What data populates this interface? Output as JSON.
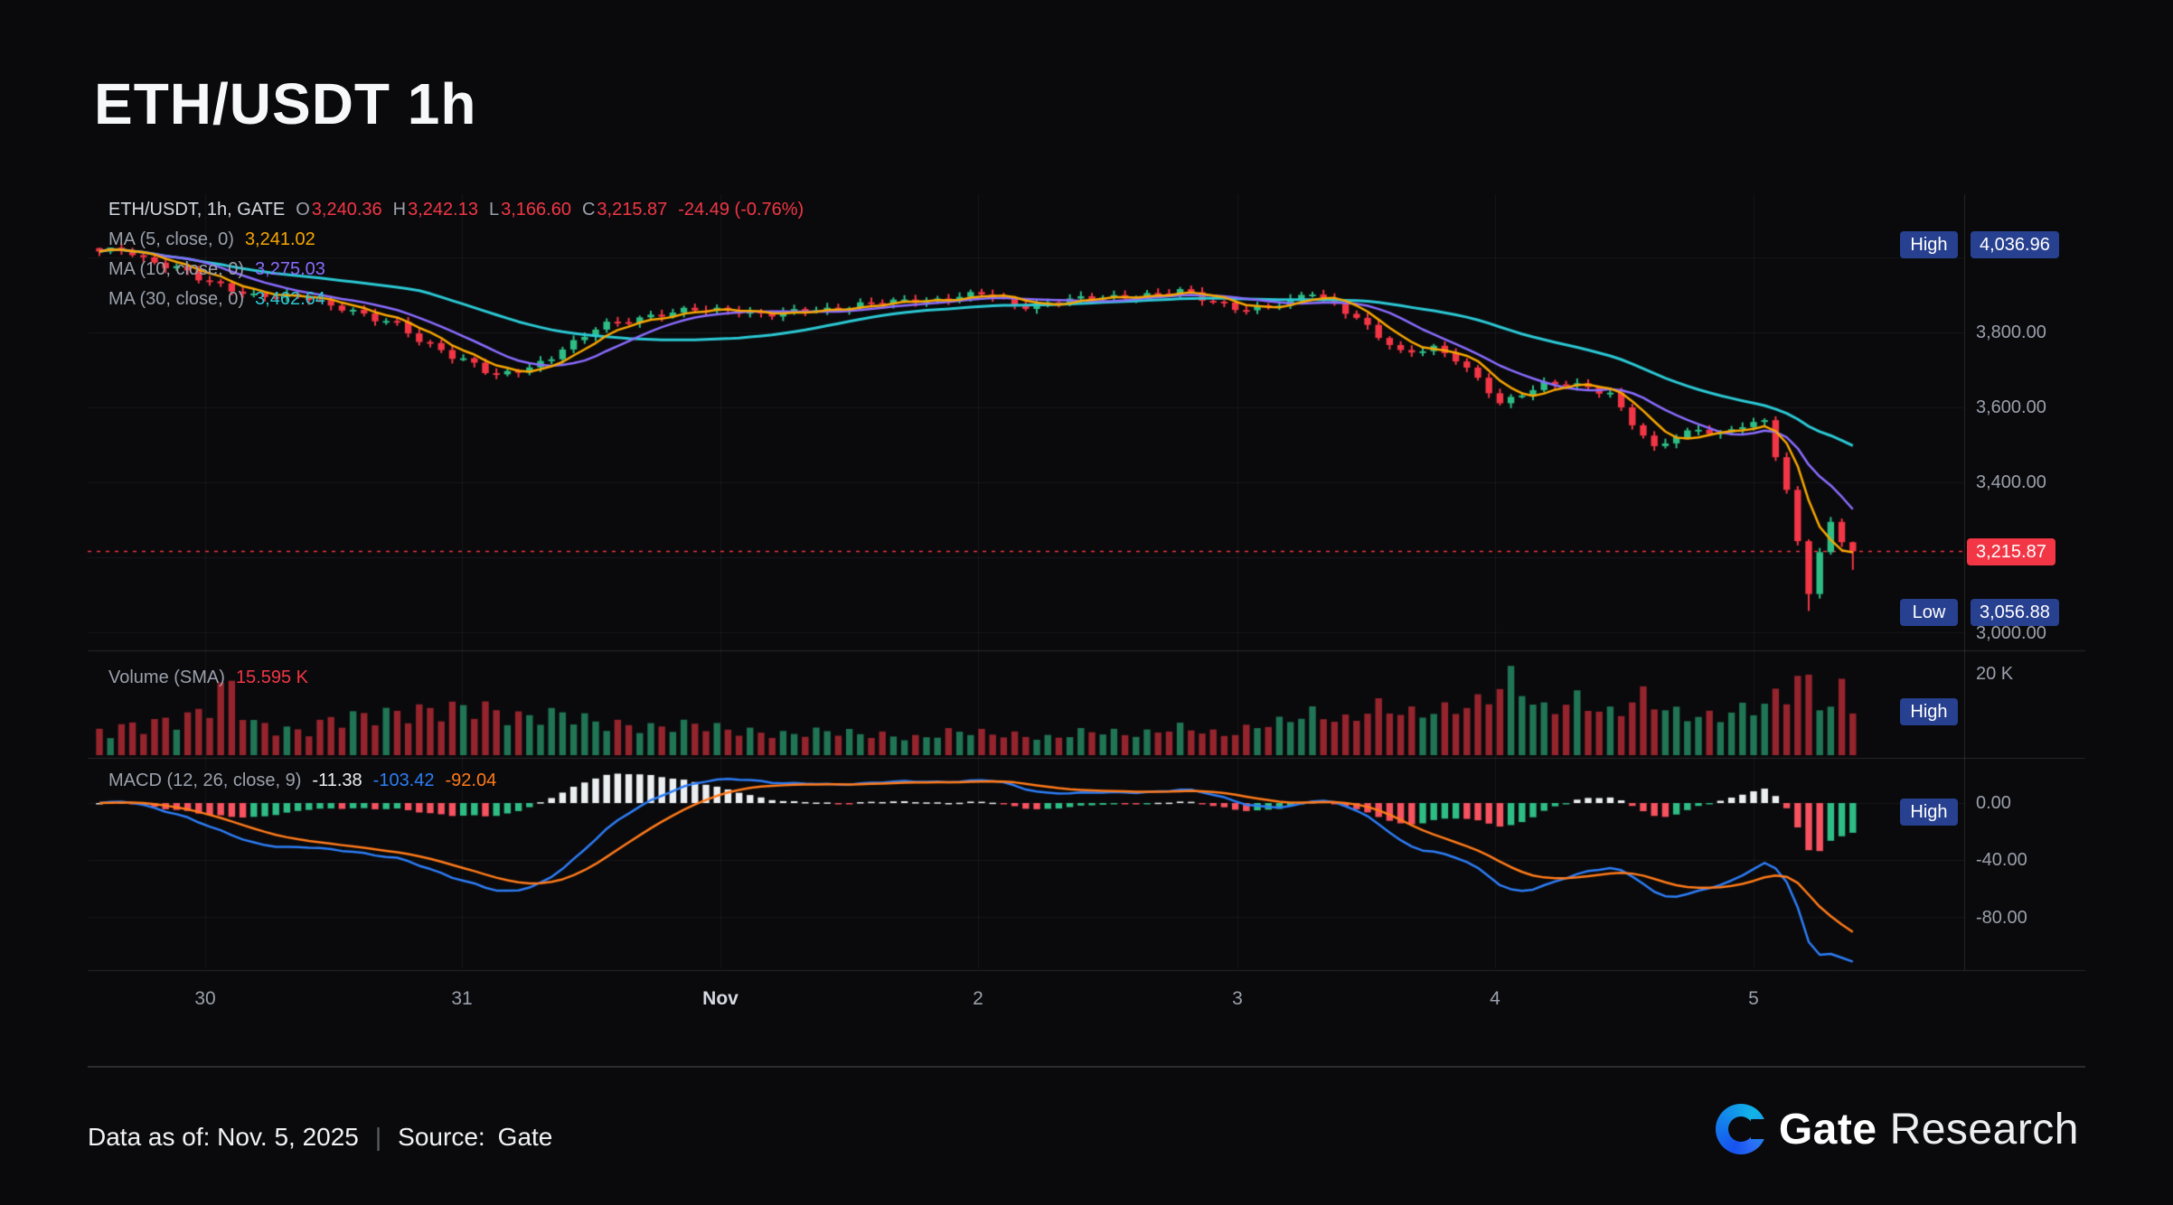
{
  "page": {
    "title": "ETH/USDT 1h"
  },
  "legend": {
    "symbol": "ETH/USDT, 1h, GATE",
    "ohlc": [
      {
        "k": "O",
        "v": "3,240.36"
      },
      {
        "k": "H",
        "v": "3,242.13"
      },
      {
        "k": "L",
        "v": "3,166.60"
      },
      {
        "k": "C",
        "v": "3,215.87"
      }
    ],
    "change": "-24.49 (-0.76%)",
    "ma_rows": [
      {
        "label": "MA (5, close, 0)",
        "value": "3,241.02",
        "color": "#F7A600"
      },
      {
        "label": "MA (10, close, 0)",
        "value": "3,275.03",
        "color": "#8A6CFF"
      },
      {
        "label": "MA (30, close, 0)",
        "value": "3,462.64",
        "color": "#2BC8D4"
      }
    ]
  },
  "volume_legend": {
    "label": "Volume (SMA)",
    "value": "15.595 K",
    "value_color": "#F23645"
  },
  "macd_legend": {
    "label": "MACD (12, 26, close, 9)",
    "values": [
      {
        "v": "-11.38",
        "color": "#ECEFF1"
      },
      {
        "v": "-103.42",
        "color": "#2D7DF6"
      },
      {
        "v": "-92.04",
        "color": "#FF7A1A"
      }
    ]
  },
  "price_axis": {
    "ticks": [
      "3,800.00",
      "3,600.00",
      "3,400.00",
      "3,000.00"
    ],
    "high_badge": {
      "label": "High",
      "value": "4,036.96"
    },
    "low_badge": {
      "label": "Low",
      "value": "3,056.88"
    },
    "last_price": "3,215.87"
  },
  "volume_axis": {
    "tick": "20 K",
    "high_badge": "High"
  },
  "macd_axis": {
    "ticks": [
      "0.00",
      "-40.00",
      "-80.00"
    ],
    "high_badge": "High"
  },
  "x_axis": {
    "labels": [
      "30",
      "31",
      "Nov",
      "2",
      "3",
      "4",
      "5"
    ]
  },
  "footer": {
    "data_as_of": "Data as of: Nov. 5, 2025",
    "divider": "|",
    "source_label": "Source:",
    "source": "Gate"
  },
  "brand": {
    "name": "Gate",
    "suffix": "Research"
  },
  "chart_data": {
    "type": "candlestick",
    "title": "ETH/USDT 1h",
    "symbol": "ETH/USDT",
    "interval": "1h",
    "exchange": "GATE",
    "last": {
      "open": 3240.36,
      "high": 3242.13,
      "low": 3166.6,
      "close": 3215.87,
      "change": -24.49,
      "change_pct": -0.76
    },
    "high": 4036.96,
    "low": 3056.88,
    "ma_values": {
      "ma5": 3241.02,
      "ma10": 3275.03,
      "ma30": 3462.64
    },
    "volume_sma_k": 15.595,
    "volume_unit": "K",
    "macd_params": {
      "fast": 12,
      "slow": 26,
      "signal": 9
    },
    "macd_last": {
      "hist": -11.38,
      "macd": -103.42,
      "signal": -92.04
    },
    "price_gridlines": [
      4000,
      3800,
      3600,
      3400,
      3200,
      3000
    ],
    "macd_gridlines": [
      0,
      -40,
      -80
    ],
    "x_labels": [
      "30",
      "31",
      "Nov",
      "2",
      "3",
      "4",
      "5"
    ],
    "n_candles": 160,
    "candles_per_day": 24,
    "price_path": [
      [
        0,
        4012
      ],
      [
        2,
        4022
      ],
      [
        4,
        3998
      ],
      [
        7,
        3972
      ],
      [
        10,
        3930
      ],
      [
        14,
        3902
      ],
      [
        18,
        3892
      ],
      [
        22,
        3868
      ],
      [
        26,
        3828
      ],
      [
        30,
        3768
      ],
      [
        33,
        3728
      ],
      [
        36,
        3682
      ],
      [
        38,
        3698
      ],
      [
        40,
        3722
      ],
      [
        43,
        3772
      ],
      [
        46,
        3822
      ],
      [
        50,
        3846
      ],
      [
        54,
        3858
      ],
      [
        57,
        3862
      ],
      [
        61,
        3846
      ],
      [
        65,
        3862
      ],
      [
        70,
        3876
      ],
      [
        75,
        3888
      ],
      [
        80,
        3900
      ],
      [
        84,
        3872
      ],
      [
        88,
        3886
      ],
      [
        92,
        3896
      ],
      [
        96,
        3902
      ],
      [
        98,
        3908
      ],
      [
        101,
        3884
      ],
      [
        104,
        3862
      ],
      [
        107,
        3872
      ],
      [
        110,
        3910
      ],
      [
        112,
        3876
      ],
      [
        114,
        3836
      ],
      [
        116,
        3786
      ],
      [
        118,
        3748
      ],
      [
        121,
        3762
      ],
      [
        123,
        3726
      ],
      [
        125,
        3672
      ],
      [
        127,
        3612
      ],
      [
        129,
        3640
      ],
      [
        131,
        3662
      ],
      [
        134,
        3656
      ],
      [
        137,
        3640
      ],
      [
        139,
        3560
      ],
      [
        141,
        3488
      ],
      [
        143,
        3520
      ],
      [
        145,
        3544
      ],
      [
        147,
        3532
      ],
      [
        149,
        3552
      ],
      [
        151,
        3558
      ],
      [
        152,
        3470
      ],
      [
        153,
        3380
      ],
      [
        154,
        3240
      ],
      [
        155,
        3110
      ],
      [
        156,
        3220
      ],
      [
        157,
        3290
      ],
      [
        158,
        3240
      ],
      [
        159,
        3216
      ]
    ],
    "volume_path": [
      [
        0,
        7
      ],
      [
        4,
        9
      ],
      [
        8,
        11
      ],
      [
        12,
        20
      ],
      [
        14,
        9
      ],
      [
        18,
        7
      ],
      [
        22,
        11
      ],
      [
        26,
        12
      ],
      [
        30,
        13
      ],
      [
        34,
        14
      ],
      [
        38,
        11
      ],
      [
        42,
        12
      ],
      [
        46,
        9
      ],
      [
        50,
        8
      ],
      [
        54,
        9
      ],
      [
        58,
        7
      ],
      [
        62,
        6
      ],
      [
        66,
        7
      ],
      [
        70,
        6
      ],
      [
        74,
        5
      ],
      [
        78,
        7
      ],
      [
        82,
        6
      ],
      [
        86,
        5
      ],
      [
        90,
        7
      ],
      [
        94,
        6
      ],
      [
        98,
        8
      ],
      [
        102,
        6
      ],
      [
        106,
        9
      ],
      [
        110,
        12
      ],
      [
        113,
        10
      ],
      [
        116,
        14
      ],
      [
        119,
        12
      ],
      [
        122,
        13
      ],
      [
        125,
        15
      ],
      [
        128,
        22
      ],
      [
        131,
        13
      ],
      [
        134,
        16
      ],
      [
        137,
        12
      ],
      [
        140,
        17
      ],
      [
        143,
        12
      ],
      [
        146,
        11
      ],
      [
        149,
        13
      ],
      [
        151,
        15
      ],
      [
        153,
        18
      ],
      [
        154,
        23
      ],
      [
        155,
        20
      ],
      [
        156,
        16
      ],
      [
        157,
        14
      ],
      [
        158,
        19
      ],
      [
        159,
        15
      ]
    ],
    "colors": {
      "up": "#2EBD85",
      "down": "#F23645",
      "vol_up": "rgba(46,189,133,0.6)",
      "vol_down": "rgba(242,54,69,0.6)",
      "ma5": "#F7A600",
      "ma10": "#8A6CFF",
      "ma30": "#2BC8D4",
      "macd_line": "#2D7DF6",
      "signal_line": "#FF7A1A",
      "hist_pos": "#ECEFF1",
      "hist_neg_fall": "#F7525F",
      "hist_neg_rise": "#2EBD85",
      "grid": "rgba(255,255,255,0.055)",
      "separator": "rgba(255,255,255,0.12)",
      "badge_navy": "#27408F",
      "badge_red": "#F23645"
    }
  }
}
